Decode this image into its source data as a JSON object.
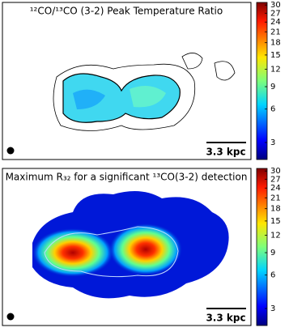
{
  "panels": [
    {
      "title": "¹²CO/¹³CO (3-2) Peak Temperature Ratio",
      "scale_bar": "3.3 kpc",
      "colorbar": {
        "lim": [
          2,
          31
        ],
        "power": 0.25,
        "ticks": [
          30,
          27,
          24,
          21,
          18,
          15,
          12,
          9,
          6,
          3
        ]
      }
    },
    {
      "title": "Maximum R₃₂ for a significant ¹³CO(3-2) detection",
      "scale_bar": "3.3 kpc",
      "colorbar": {
        "lim": [
          2,
          31
        ],
        "power": 0.25,
        "ticks": [
          30,
          27,
          24,
          21,
          18,
          15,
          12,
          9,
          6,
          3
        ]
      }
    }
  ]
}
